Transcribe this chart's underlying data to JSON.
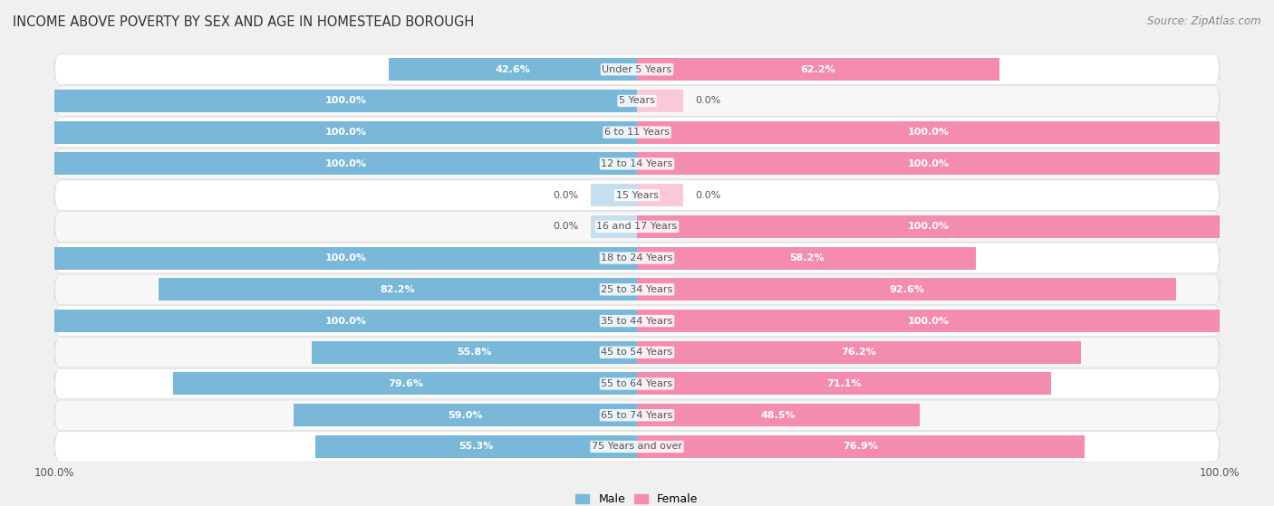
{
  "title": "INCOME ABOVE POVERTY BY SEX AND AGE IN HOMESTEAD BOROUGH",
  "source": "Source: ZipAtlas.com",
  "categories": [
    "Under 5 Years",
    "5 Years",
    "6 to 11 Years",
    "12 to 14 Years",
    "15 Years",
    "16 and 17 Years",
    "18 to 24 Years",
    "25 to 34 Years",
    "35 to 44 Years",
    "45 to 54 Years",
    "55 to 64 Years",
    "65 to 74 Years",
    "75 Years and over"
  ],
  "male": [
    42.6,
    100.0,
    100.0,
    100.0,
    0.0,
    0.0,
    100.0,
    82.2,
    100.0,
    55.8,
    79.6,
    59.0,
    55.3
  ],
  "female": [
    62.2,
    0.0,
    100.0,
    100.0,
    0.0,
    100.0,
    58.2,
    92.6,
    100.0,
    76.2,
    71.1,
    48.5,
    76.9
  ],
  "male_color": "#7ab8d9",
  "female_color": "#f48cb1",
  "male_color_light": "#c5dff0",
  "female_color_light": "#fac8db",
  "bar_height": 0.72,
  "row_bg_light": "#f7f7f7",
  "row_bg_white": "#ffffff",
  "background_color": "#f0f0f0",
  "label_inside_color": "#ffffff",
  "label_outside_color": "#555555",
  "label_inside_threshold": 15,
  "center_label_color": "#555555"
}
